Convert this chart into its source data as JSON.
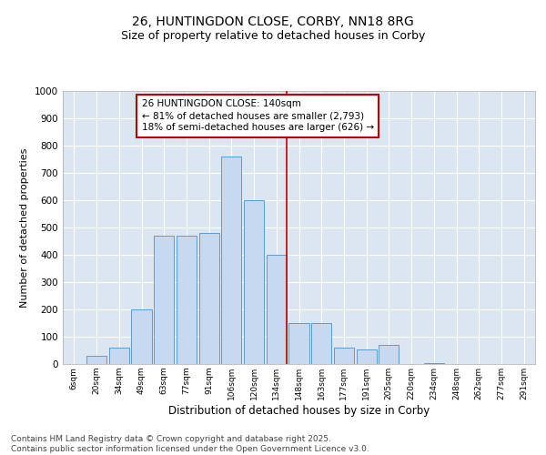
{
  "title_line1": "26, HUNTINGDON CLOSE, CORBY, NN18 8RG",
  "title_line2": "Size of property relative to detached houses in Corby",
  "xlabel": "Distribution of detached houses by size in Corby",
  "ylabel": "Number of detached properties",
  "bar_labels": [
    "6sqm",
    "20sqm",
    "34sqm",
    "49sqm",
    "63sqm",
    "77sqm",
    "91sqm",
    "106sqm",
    "120sqm",
    "134sqm",
    "148sqm",
    "163sqm",
    "177sqm",
    "191sqm",
    "205sqm",
    "220sqm",
    "234sqm",
    "248sqm",
    "262sqm",
    "277sqm",
    "291sqm"
  ],
  "bar_values": [
    0,
    30,
    60,
    200,
    470,
    470,
    480,
    760,
    600,
    400,
    150,
    150,
    60,
    55,
    70,
    0,
    5,
    0,
    0,
    0,
    0
  ],
  "bar_color": "#c6d9f0",
  "bar_edge_color": "#5b9bd5",
  "ylim": [
    0,
    1000
  ],
  "yticks": [
    0,
    100,
    200,
    300,
    400,
    500,
    600,
    700,
    800,
    900,
    1000
  ],
  "annotation_text": "26 HUNTINGDON CLOSE: 140sqm\n← 81% of detached houses are smaller (2,793)\n18% of semi-detached houses are larger (626) →",
  "vline_color": "#c00000",
  "annotation_box_edgecolor": "#c00000",
  "annotation_box_facecolor": "#ffffff",
  "background_color": "#dce6f1",
  "grid_color": "#ffffff",
  "footer_text": "Contains HM Land Registry data © Crown copyright and database right 2025.\nContains public sector information licensed under the Open Government Licence v3.0.",
  "title_fontsize": 10,
  "subtitle_fontsize": 9,
  "annotation_fontsize": 7.5,
  "footer_fontsize": 6.5,
  "ylabel_fontsize": 8,
  "xlabel_fontsize": 8.5
}
